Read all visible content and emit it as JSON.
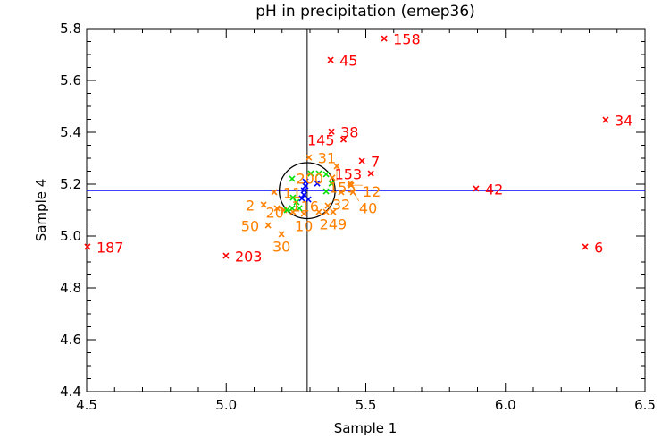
{
  "chart_data": {
    "type": "scatter",
    "title": "pH in precipitation (emep36)",
    "xlabel": "Sample 1",
    "ylabel": "Sample 4",
    "xlim": [
      4.5,
      6.5
    ],
    "ylim": [
      4.4,
      5.8
    ],
    "xticks": [
      "4.5",
      "5.0",
      "5.5",
      "6.0",
      "6.5"
    ],
    "yticks": [
      "4.4",
      "4.6",
      "4.8",
      "5.0",
      "5.2",
      "5.4",
      "5.6",
      "5.8"
    ],
    "grid": false,
    "median_x": 5.29,
    "median_y": 5.175,
    "circle": {
      "cx": 5.29,
      "cy": 5.175,
      "r": 0.1
    },
    "colors": {
      "red": "#ff0000",
      "orange": "#ff8000",
      "green": "#00e000",
      "blue": "#0000ff",
      "median_line": "#0000ff",
      "axis": "#000000"
    },
    "points": [
      {
        "x": 5.566,
        "y": 5.762,
        "group": "red",
        "label": "158"
      },
      {
        "x": 5.374,
        "y": 5.679,
        "group": "red",
        "label": "45"
      },
      {
        "x": 5.377,
        "y": 5.403,
        "group": "red",
        "label": "38"
      },
      {
        "x": 5.42,
        "y": 5.372,
        "group": "red",
        "label": "145"
      },
      {
        "x": 5.486,
        "y": 5.29,
        "group": "red",
        "label": "7"
      },
      {
        "x": 5.518,
        "y": 5.241,
        "group": "red",
        "label": "153"
      },
      {
        "x": 6.359,
        "y": 5.448,
        "group": "red",
        "label": "34"
      },
      {
        "x": 5.895,
        "y": 5.183,
        "group": "red",
        "label": "42"
      },
      {
        "x": 6.286,
        "y": 4.959,
        "group": "red",
        "label": "6"
      },
      {
        "x": 4.999,
        "y": 4.924,
        "group": "red",
        "label": "203"
      },
      {
        "x": 4.503,
        "y": 4.959,
        "group": "red",
        "label": "187"
      },
      {
        "x": 5.296,
        "y": 5.303,
        "group": "orange",
        "label": "31"
      },
      {
        "x": 5.396,
        "y": 5.269,
        "group": "orange",
        "label": "155"
      },
      {
        "x": 5.38,
        "y": 5.225,
        "group": "orange",
        "label": "200"
      },
      {
        "x": 5.447,
        "y": 5.196,
        "group": "orange",
        "label": "12"
      },
      {
        "x": 5.412,
        "y": 5.169,
        "group": "orange",
        "label": "32"
      },
      {
        "x": 5.454,
        "y": 5.169,
        "group": "orange",
        "label": "40"
      },
      {
        "x": 5.364,
        "y": 5.117,
        "group": "orange",
        "label": "116"
      },
      {
        "x": 5.383,
        "y": 5.093,
        "group": "orange",
        "label": "249"
      },
      {
        "x": 5.172,
        "y": 5.169,
        "group": "orange",
        "label": "11"
      },
      {
        "x": 5.134,
        "y": 5.121,
        "group": "orange",
        "label": "2"
      },
      {
        "x": 5.239,
        "y": 5.093,
        "group": "orange",
        "label": "20"
      },
      {
        "x": 5.278,
        "y": 5.086,
        "group": "orange",
        "label": "10"
      },
      {
        "x": 5.15,
        "y": 5.041,
        "group": "orange",
        "label": "50"
      },
      {
        "x": 5.198,
        "y": 5.007,
        "group": "orange",
        "label": "30"
      },
      {
        "x": 5.182,
        "y": 5.107,
        "group": "orange"
      },
      {
        "x": 5.207,
        "y": 5.1,
        "group": "orange"
      },
      {
        "x": 5.332,
        "y": 5.093,
        "group": "orange"
      },
      {
        "x": 5.444,
        "y": 5.203,
        "group": "orange"
      },
      {
        "x": 5.358,
        "y": 5.093,
        "group": "orange"
      },
      {
        "x": 5.236,
        "y": 5.221,
        "group": "green"
      },
      {
        "x": 5.303,
        "y": 5.241,
        "group": "green"
      },
      {
        "x": 5.332,
        "y": 5.241,
        "group": "green"
      },
      {
        "x": 5.358,
        "y": 5.238,
        "group": "green"
      },
      {
        "x": 5.377,
        "y": 5.203,
        "group": "green"
      },
      {
        "x": 5.358,
        "y": 5.172,
        "group": "green"
      },
      {
        "x": 5.239,
        "y": 5.148,
        "group": "green"
      },
      {
        "x": 5.252,
        "y": 5.131,
        "group": "green"
      },
      {
        "x": 5.236,
        "y": 5.107,
        "group": "green"
      },
      {
        "x": 5.262,
        "y": 5.107,
        "group": "green"
      },
      {
        "x": 5.217,
        "y": 5.1,
        "group": "green"
      },
      {
        "x": 5.284,
        "y": 5.21,
        "group": "blue"
      },
      {
        "x": 5.284,
        "y": 5.193,
        "group": "blue"
      },
      {
        "x": 5.278,
        "y": 5.176,
        "group": "blue"
      },
      {
        "x": 5.278,
        "y": 5.159,
        "group": "blue"
      },
      {
        "x": 5.271,
        "y": 5.145,
        "group": "blue"
      },
      {
        "x": 5.294,
        "y": 5.141,
        "group": "blue"
      },
      {
        "x": 5.326,
        "y": 5.203,
        "group": "blue"
      }
    ]
  }
}
